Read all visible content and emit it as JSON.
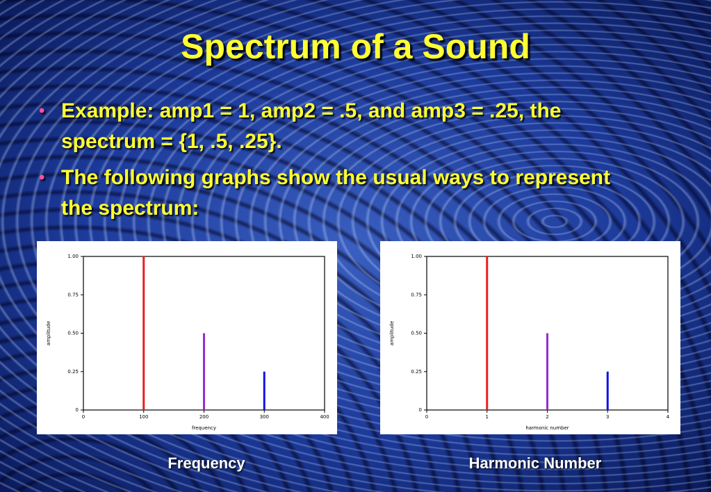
{
  "title": "Spectrum of a Sound",
  "bullets": [
    "Example:  amp1 = 1, amp2 = .5, and amp3 = .25, the spectrum = {1, .5, .25}.",
    "The following graphs show the usual ways to represent the spectrum:"
  ],
  "chart_data": [
    {
      "type": "bar",
      "x": [
        100,
        200,
        300
      ],
      "values": [
        1,
        0.5,
        0.25
      ],
      "colors": [
        "#ee1c1c",
        "#9a2bd0",
        "#1010e8"
      ],
      "xlim": [
        0,
        400
      ],
      "xticks": [
        0,
        100,
        200,
        300,
        400
      ],
      "ylim": [
        0,
        1
      ],
      "yticks": [
        0,
        0.25,
        {
          "value": 0.5,
          "label": "0.50"
        },
        0.75,
        {
          "value": 1,
          "label": "1.00"
        }
      ],
      "x_label": "frequency",
      "y_label": "amplitude"
    },
    {
      "type": "bar",
      "x": [
        1,
        2,
        3
      ],
      "values": [
        1,
        0.5,
        0.25
      ],
      "colors": [
        "#ee1c1c",
        "#9a2bd0",
        "#1010e8"
      ],
      "xlim": [
        0,
        4
      ],
      "xticks": [
        0,
        1,
        2,
        3,
        4
      ],
      "ylim": [
        0,
        1
      ],
      "yticks": [
        0,
        0.25,
        {
          "value": 0.5,
          "label": "0.50"
        },
        0.75,
        {
          "value": 1,
          "label": "1.00"
        }
      ],
      "x_label": "harmonic number",
      "y_label": "amplitude"
    }
  ],
  "captions": [
    "Frequency",
    "Harmonic Number"
  ]
}
